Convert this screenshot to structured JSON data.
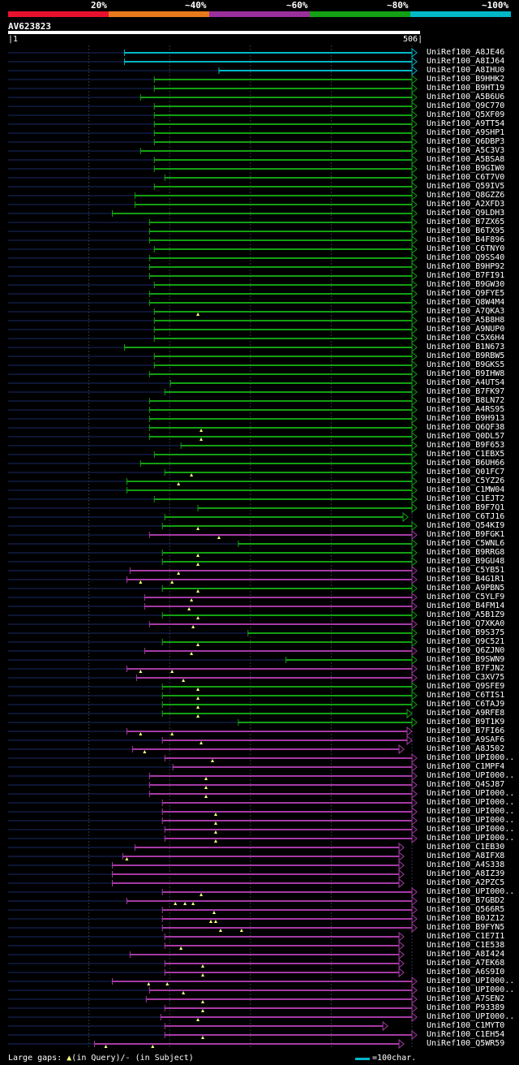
{
  "identity_scale": {
    "labels": [
      "20%",
      "~40%",
      "~60%",
      "~80%",
      "~100%"
    ],
    "colors": [
      "#e8112d",
      "#e87a1e",
      "#9b2f9b",
      "#13a013",
      "#00b8c8"
    ]
  },
  "query": {
    "name": "AV623823",
    "start": "1",
    "end": "506",
    "length": 506
  },
  "palette": {
    "cyan": "#00b8c8",
    "green": "#13a013",
    "magenta": "#a53aa5",
    "dim_line": "#1a2a66",
    "gridline": "#333355",
    "gap_marker": "#ffff80"
  },
  "hits": [
    {
      "id": "UniRef100_A8JE46",
      "color": "cyan",
      "start": 145,
      "end": 506
    },
    {
      "id": "UniRef100_A8IJ64",
      "color": "cyan",
      "start": 145,
      "end": 506
    },
    {
      "id": "UniRef100_A8IHU0",
      "color": "cyan",
      "start": 262,
      "end": 506
    },
    {
      "id": "UniRef100_B9HHK2",
      "color": "green",
      "start": 182,
      "end": 506
    },
    {
      "id": "UniRef100_B9HT19",
      "color": "green",
      "start": 182,
      "end": 506
    },
    {
      "id": "UniRef100_A5B6U6",
      "color": "green",
      "start": 165,
      "end": 506
    },
    {
      "id": "UniRef100_Q9C770",
      "color": "green",
      "start": 182,
      "end": 506
    },
    {
      "id": "UniRef100_Q5XF09",
      "color": "green",
      "start": 182,
      "end": 506
    },
    {
      "id": "UniRef100_A9TT54",
      "color": "green",
      "start": 182,
      "end": 506
    },
    {
      "id": "UniRef100_A9SHP1",
      "color": "green",
      "start": 182,
      "end": 506
    },
    {
      "id": "UniRef100_Q6DBP3",
      "color": "green",
      "start": 182,
      "end": 506
    },
    {
      "id": "UniRef100_A5C3V3",
      "color": "green",
      "start": 165,
      "end": 506
    },
    {
      "id": "UniRef100_A5BSA8",
      "color": "green",
      "start": 182,
      "end": 506
    },
    {
      "id": "UniRef100_B9GIW0",
      "color": "green",
      "start": 182,
      "end": 506
    },
    {
      "id": "UniRef100_C6T7V0",
      "color": "green",
      "start": 195,
      "end": 506
    },
    {
      "id": "UniRef100_Q59IV5",
      "color": "green",
      "start": 182,
      "end": 506
    },
    {
      "id": "UniRef100_Q8GZZ6",
      "color": "green",
      "start": 158,
      "end": 506
    },
    {
      "id": "UniRef100_A2XFD3",
      "color": "green",
      "start": 158,
      "end": 506
    },
    {
      "id": "UniRef100_Q9LDH3",
      "color": "green",
      "start": 130,
      "end": 506
    },
    {
      "id": "UniRef100_B7ZX65",
      "color": "green",
      "start": 176,
      "end": 506
    },
    {
      "id": "UniRef100_B6TX95",
      "color": "green",
      "start": 176,
      "end": 506
    },
    {
      "id": "UniRef100_B4F896",
      "color": "green",
      "start": 176,
      "end": 506
    },
    {
      "id": "UniRef100_C6TNY0",
      "color": "green",
      "start": 182,
      "end": 506
    },
    {
      "id": "UniRef100_Q9SS40",
      "color": "green",
      "start": 176,
      "end": 506
    },
    {
      "id": "UniRef100_B9HP92",
      "color": "green",
      "start": 176,
      "end": 506
    },
    {
      "id": "UniRef100_B7FI91",
      "color": "green",
      "start": 176,
      "end": 506
    },
    {
      "id": "UniRef100_B9GW30",
      "color": "green",
      "start": 182,
      "end": 506
    },
    {
      "id": "UniRef100_Q9FYE5",
      "color": "green",
      "start": 176,
      "end": 506
    },
    {
      "id": "UniRef100_Q8W4M4",
      "color": "green",
      "start": 176,
      "end": 506
    },
    {
      "id": "UniRef100_A7QKA3",
      "color": "green",
      "start": 182,
      "end": 506,
      "gaps": [
        236
      ]
    },
    {
      "id": "UniRef100_A5B8H8",
      "color": "green",
      "start": 182,
      "end": 506
    },
    {
      "id": "UniRef100_A9NUP0",
      "color": "green",
      "start": 182,
      "end": 506
    },
    {
      "id": "UniRef100_C5X6H4",
      "color": "green",
      "start": 182,
      "end": 506
    },
    {
      "id": "UniRef100_B1N673",
      "color": "green",
      "start": 145,
      "end": 506
    },
    {
      "id": "UniRef100_B9RBW5",
      "color": "green",
      "start": 182,
      "end": 506
    },
    {
      "id": "UniRef100_B9GKS5",
      "color": "green",
      "start": 182,
      "end": 506
    },
    {
      "id": "UniRef100_B9IHW8",
      "color": "green",
      "start": 176,
      "end": 506
    },
    {
      "id": "UniRef100_A4UTS4",
      "color": "green",
      "start": 202,
      "end": 506
    },
    {
      "id": "UniRef100_B7FK97",
      "color": "green",
      "start": 195,
      "end": 506
    },
    {
      "id": "UniRef100_B8LN72",
      "color": "green",
      "start": 176,
      "end": 506
    },
    {
      "id": "UniRef100_A4RS95",
      "color": "green",
      "start": 176,
      "end": 506
    },
    {
      "id": "UniRef100_B9H913",
      "color": "green",
      "start": 176,
      "end": 506
    },
    {
      "id": "UniRef100_Q6QF38",
      "color": "green",
      "start": 176,
      "end": 506,
      "gaps": [
        240
      ]
    },
    {
      "id": "UniRef100_Q0DL57",
      "color": "green",
      "start": 176,
      "end": 506,
      "gaps": [
        240
      ]
    },
    {
      "id": "UniRef100_B9F653",
      "color": "green",
      "start": 215,
      "end": 506
    },
    {
      "id": "UniRef100_C1EBX5",
      "color": "green",
      "start": 182,
      "end": 506
    },
    {
      "id": "UniRef100_B6UH66",
      "color": "green",
      "start": 165,
      "end": 506
    },
    {
      "id": "UniRef100_Q01FC7",
      "color": "green",
      "start": 195,
      "end": 506,
      "gaps": [
        228
      ]
    },
    {
      "id": "UniRef100_C5YZ26",
      "color": "green",
      "start": 148,
      "end": 506,
      "gaps": [
        212
      ]
    },
    {
      "id": "UniRef100_C1MW04",
      "color": "green",
      "start": 148,
      "end": 506
    },
    {
      "id": "UniRef100_C1EJT2",
      "color": "green",
      "start": 182,
      "end": 506
    },
    {
      "id": "UniRef100_B9F7Q1",
      "color": "green",
      "start": 236,
      "end": 506
    },
    {
      "id": "UniRef100_C6TJ16",
      "color": "green",
      "start": 195,
      "end": 495
    },
    {
      "id": "UniRef100_Q54KI9",
      "color": "green",
      "start": 192,
      "end": 506,
      "gaps": [
        236
      ]
    },
    {
      "id": "UniRef100_B9FGK1",
      "color": "magenta",
      "start": 176,
      "end": 506,
      "gaps": [
        262
      ]
    },
    {
      "id": "UniRef100_C5WNL6",
      "color": "green",
      "start": 286,
      "end": 506
    },
    {
      "id": "UniRef100_B9RRG8",
      "color": "green",
      "start": 192,
      "end": 506,
      "gaps": [
        236
      ]
    },
    {
      "id": "UniRef100_B9GU48",
      "color": "green",
      "start": 192,
      "end": 506,
      "gaps": [
        236
      ]
    },
    {
      "id": "UniRef100_C5YB51",
      "color": "magenta",
      "start": 152,
      "end": 506,
      "gaps": [
        212
      ]
    },
    {
      "id": "UniRef100_B4G1R1",
      "color": "magenta",
      "start": 148,
      "end": 506,
      "gaps": [
        165,
        204
      ]
    },
    {
      "id": "UniRef100_A9PBN5",
      "color": "green",
      "start": 192,
      "end": 506,
      "gaps": [
        236
      ]
    },
    {
      "id": "UniRef100_C5YLF9",
      "color": "magenta",
      "start": 170,
      "end": 506,
      "gaps": [
        228
      ]
    },
    {
      "id": "UniRef100_B4FM14",
      "color": "magenta",
      "start": 170,
      "end": 506,
      "gaps": [
        225
      ]
    },
    {
      "id": "UniRef100_A5B1Z9",
      "color": "green",
      "start": 192,
      "end": 506,
      "gaps": [
        236
      ]
    },
    {
      "id": "UniRef100_Q7XKA0",
      "color": "magenta",
      "start": 176,
      "end": 506,
      "gaps": [
        230
      ]
    },
    {
      "id": "UniRef100_B9S375",
      "color": "green",
      "start": 298,
      "end": 506
    },
    {
      "id": "UniRef100_Q9C521",
      "color": "green",
      "start": 192,
      "end": 506,
      "gaps": [
        236
      ]
    },
    {
      "id": "UniRef100_Q6ZJN0",
      "color": "magenta",
      "start": 170,
      "end": 506,
      "gaps": [
        228
      ]
    },
    {
      "id": "UniRef100_B9SWN9",
      "color": "green",
      "start": 345,
      "end": 506
    },
    {
      "id": "UniRef100_B7FJN2",
      "color": "magenta",
      "start": 148,
      "end": 506,
      "gaps": [
        165,
        204
      ]
    },
    {
      "id": "UniRef100_C3XV75",
      "color": "magenta",
      "start": 160,
      "end": 506,
      "gaps": [
        218
      ]
    },
    {
      "id": "UniRef100_Q9SFE9",
      "color": "green",
      "start": 192,
      "end": 506,
      "gaps": [
        236
      ]
    },
    {
      "id": "UniRef100_C6TIS1",
      "color": "green",
      "start": 192,
      "end": 506,
      "gaps": [
        236
      ]
    },
    {
      "id": "UniRef100_C6TAJ9",
      "color": "green",
      "start": 192,
      "end": 506,
      "gaps": [
        236
      ]
    },
    {
      "id": "UniRef100_A9RFE8",
      "color": "green",
      "start": 192,
      "end": 500,
      "gaps": [
        236
      ]
    },
    {
      "id": "UniRef100_B9T1K9",
      "color": "green",
      "start": 286,
      "end": 506
    },
    {
      "id": "UniRef100_B7FI66",
      "color": "magenta",
      "start": 148,
      "end": 500,
      "gaps": [
        165,
        204
      ]
    },
    {
      "id": "UniRef100_A9SAF6",
      "color": "magenta",
      "start": 192,
      "end": 500,
      "gaps": [
        240
      ]
    },
    {
      "id": "UniRef100_A8J502",
      "color": "magenta",
      "start": 155,
      "end": 490,
      "gaps": [
        170
      ]
    },
    {
      "id": "UniRef100_UPI000..",
      "color": "magenta",
      "start": 195,
      "end": 506,
      "gaps": [
        254
      ]
    },
    {
      "id": "UniRef100_C1MPF4",
      "color": "magenta",
      "start": 205,
      "end": 506
    },
    {
      "id": "UniRef100_UPI000..",
      "color": "magenta",
      "start": 176,
      "end": 506,
      "gaps": [
        246
      ]
    },
    {
      "id": "UniRef100_Q4SJ87",
      "color": "magenta",
      "start": 176,
      "end": 506,
      "gaps": [
        246
      ]
    },
    {
      "id": "UniRef100_UPI000..",
      "color": "magenta",
      "start": 176,
      "end": 506,
      "gaps": [
        246
      ]
    },
    {
      "id": "UniRef100_UPI000..",
      "color": "magenta",
      "start": 192,
      "end": 506
    },
    {
      "id": "UniRef100_UPI000..",
      "color": "magenta",
      "start": 192,
      "end": 506,
      "gaps": [
        258
      ]
    },
    {
      "id": "UniRef100_UPI000..",
      "color": "magenta",
      "start": 192,
      "end": 506,
      "gaps": [
        258
      ]
    },
    {
      "id": "UniRef100_UPI000..",
      "color": "magenta",
      "start": 195,
      "end": 506,
      "gaps": [
        258
      ]
    },
    {
      "id": "UniRef100_UPI000..",
      "color": "magenta",
      "start": 195,
      "end": 506,
      "gaps": [
        258
      ]
    },
    {
      "id": "UniRef100_C1EB30",
      "color": "magenta",
      "start": 158,
      "end": 490
    },
    {
      "id": "UniRef100_A8IFX8",
      "color": "magenta",
      "start": 143,
      "end": 490,
      "gaps": [
        148
      ]
    },
    {
      "id": "UniRef100_A4S338",
      "color": "magenta",
      "start": 130,
      "end": 490
    },
    {
      "id": "UniRef100_A8IZ39",
      "color": "magenta",
      "start": 130,
      "end": 490
    },
    {
      "id": "UniRef100_A2PZC5",
      "color": "magenta",
      "start": 130,
      "end": 490
    },
    {
      "id": "UniRef100_UPI000..",
      "color": "magenta",
      "start": 192,
      "end": 506,
      "gaps": [
        240
      ]
    },
    {
      "id": "UniRef100_B7GBD2",
      "color": "magenta",
      "start": 148,
      "end": 506,
      "gaps": [
        208,
        220,
        230
      ]
    },
    {
      "id": "UniRef100_Q566R5",
      "color": "magenta",
      "start": 192,
      "end": 506,
      "gaps": [
        256
      ]
    },
    {
      "id": "UniRef100_B0JZ12",
      "color": "magenta",
      "start": 192,
      "end": 506,
      "gaps": [
        252,
        258
      ]
    },
    {
      "id": "UniRef100_B9FYN5",
      "color": "magenta",
      "start": 192,
      "end": 506,
      "gaps": [
        264,
        290
      ]
    },
    {
      "id": "UniRef100_C1E7I1",
      "color": "magenta",
      "start": 195,
      "end": 490
    },
    {
      "id": "UniRef100_C1E538",
      "color": "magenta",
      "start": 195,
      "end": 490,
      "gaps": [
        215
      ]
    },
    {
      "id": "UniRef100_A8I424",
      "color": "magenta",
      "start": 152,
      "end": 490
    },
    {
      "id": "UniRef100_A7EK68",
      "color": "magenta",
      "start": 195,
      "end": 490,
      "gaps": [
        242
      ]
    },
    {
      "id": "UniRef100_A6S9I0",
      "color": "magenta",
      "start": 195,
      "end": 490,
      "gaps": [
        242
      ]
    },
    {
      "id": "UniRef100_UPI000..",
      "color": "magenta",
      "start": 130,
      "end": 506,
      "gaps": [
        175,
        198
      ]
    },
    {
      "id": "UniRef100_UPI000..",
      "color": "magenta",
      "start": 176,
      "end": 506,
      "gaps": [
        218
      ]
    },
    {
      "id": "UniRef100_A7SEN2",
      "color": "magenta",
      "start": 172,
      "end": 506,
      "gaps": [
        242
      ]
    },
    {
      "id": "UniRef100_P93389",
      "color": "magenta",
      "start": 195,
      "end": 506,
      "gaps": [
        242
      ]
    },
    {
      "id": "UniRef100_UPI000..",
      "color": "magenta",
      "start": 190,
      "end": 506,
      "gaps": [
        236
      ]
    },
    {
      "id": "UniRef100_C1MYT0",
      "color": "magenta",
      "start": 195,
      "end": 470
    },
    {
      "id": "UniRef100_C1EH54",
      "color": "magenta",
      "start": 195,
      "end": 506,
      "gaps": [
        242
      ]
    },
    {
      "id": "UniRef100_Q5WR59",
      "color": "magenta",
      "start": 108,
      "end": 490,
      "gaps": [
        122,
        180
      ]
    }
  ],
  "legend": {
    "gaps_text_prefix": "Large gaps:",
    "gaps_text_suffix": "(in Query)/- (in Subject)",
    "scale_text": "=100char."
  }
}
